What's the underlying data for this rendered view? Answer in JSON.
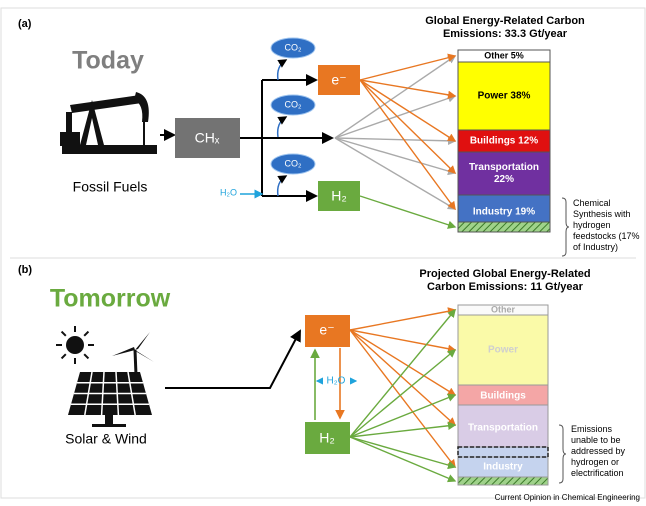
{
  "panel_a": {
    "label": "(a)",
    "heading": "Today",
    "source": "Fossil Fuels",
    "fuel": "CHₓ",
    "byproduct": "CO₂",
    "water": "H₂O",
    "electricity": "e⁻",
    "hydrogen": "H₂",
    "chart_title": [
      "Global Energy-Related Carbon",
      "Emissions: 33.3 Gt/year"
    ],
    "segments": [
      [
        "Other  5%"
      ],
      [
        "Power  38%"
      ],
      [
        "Buildings  12%"
      ],
      [
        "Transportation",
        "22%"
      ],
      [
        "Industry  19%"
      ]
    ],
    "note": [
      "Chemical",
      "Synthesis with",
      "hydrogen",
      "feedstocks (17%",
      "of Industry)"
    ]
  },
  "panel_b": {
    "label": "(b)",
    "heading": "Tomorrow",
    "source": "Solar & Wind",
    "electricity": "e⁻",
    "water": "H₂O",
    "hydrogen": "H₂",
    "chart_title": [
      "Projected Global Energy-Related",
      "Carbon Emissions: 11 Gt/year"
    ],
    "segments": [
      "Other",
      "Power",
      "Buildings",
      "Transportation",
      "Industry"
    ],
    "note": [
      "Emissions",
      "unable to be",
      "addressed by",
      "hydrogen or",
      "electrification"
    ]
  },
  "footer": "Current Opinion in Chemical Engineering"
}
